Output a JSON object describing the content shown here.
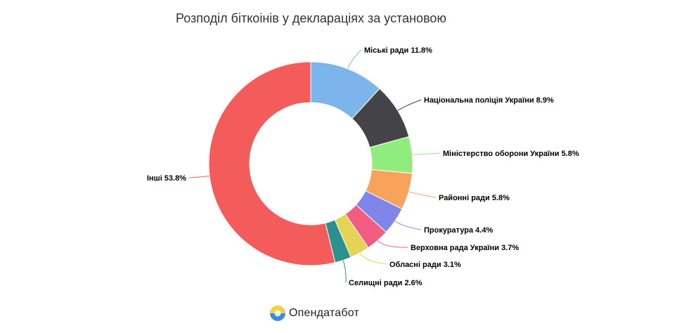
{
  "chart_data": {
    "type": "pie",
    "variant": "donut",
    "title": "Розподіл біткоінів у деклараціях за установою",
    "categories": [
      "Міські ради",
      "Національна поліція України",
      "Міністерство оборони України",
      "Районні ради",
      "Прокуратура",
      "Верховна рада України",
      "Обласні ради",
      "Селищні ради",
      "Інші"
    ],
    "values": [
      11.8,
      8.9,
      5.8,
      5.8,
      4.4,
      3.7,
      3.1,
      2.6,
      53.8
    ],
    "value_suffix": "%",
    "colors": [
      "#7cb5ec",
      "#434348",
      "#90ed7d",
      "#f7a35c",
      "#8085e9",
      "#f15c80",
      "#e4d354",
      "#2b908f",
      "#f45b5b"
    ],
    "legend": "none",
    "data_labels": "outside with connectors"
  },
  "brand": {
    "name": "Опендатабот",
    "icon": "opendatabot-logo-icon"
  }
}
